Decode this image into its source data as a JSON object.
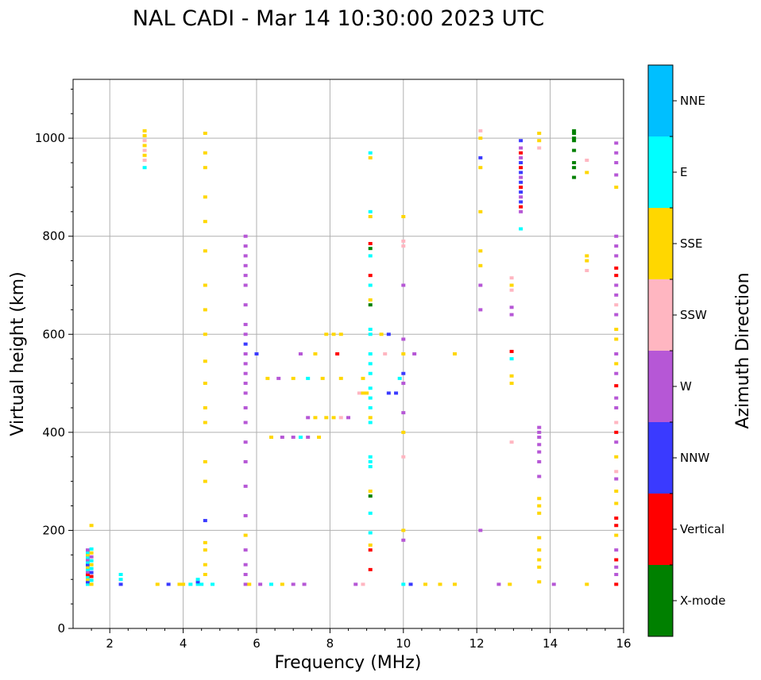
{
  "chart_data": {
    "type": "scatter",
    "title": "NAL CADI - Mar 14 10:30:00 2023 UTC",
    "xlabel": "Frequency (MHz)",
    "ylabel": "Virtual height (km)",
    "xlim": [
      1,
      16
    ],
    "ylim": [
      0,
      1120
    ],
    "xticks": [
      2,
      4,
      6,
      8,
      10,
      12,
      14,
      16
    ],
    "yticks": [
      0,
      200,
      400,
      600,
      800,
      1000
    ],
    "grid": true,
    "colorbar": {
      "title": "Azimuth Direction",
      "placement": "right",
      "categories": [
        {
          "name": "X-mode",
          "color": "#008000"
        },
        {
          "name": "Vertical",
          "color": "#ff0000"
        },
        {
          "name": "NNW",
          "color": "#3a3aff"
        },
        {
          "name": "W",
          "color": "#b657d6"
        },
        {
          "name": "SSW",
          "color": "#ffb6c1"
        },
        {
          "name": "SSE",
          "color": "#ffd700"
        },
        {
          "name": "E",
          "color": "#00ffff"
        },
        {
          "name": "NNE",
          "color": "#00bfff"
        }
      ]
    },
    "echo_columns": [
      {
        "f": 1.4,
        "h": [
          90,
          95,
          100,
          105,
          110,
          115,
          120,
          125,
          130,
          135,
          140,
          145,
          150,
          155,
          160
        ],
        "dir": [
          "E",
          "NNW",
          "SSE",
          "E",
          "Vertical",
          "W",
          "E",
          "SSE",
          "NNW",
          "E",
          "W",
          "E",
          "SSE",
          "E",
          "W"
        ]
      },
      {
        "f": 1.5,
        "h": [
          90,
          98,
          106,
          114,
          122,
          130,
          138,
          146,
          154,
          162,
          210
        ],
        "dir": [
          "SSE",
          "E",
          "Vertical",
          "NNW",
          "E",
          "SSE",
          "E",
          "W",
          "SSE",
          "E",
          "SSE"
        ]
      },
      {
        "f": 2.3,
        "h": [
          90,
          100,
          110
        ],
        "dir": [
          "NNW",
          "E",
          "E"
        ]
      },
      {
        "f": 2.95,
        "h": [
          940,
          955,
          965,
          975,
          985,
          995,
          1005,
          1015
        ],
        "dir": [
          "E",
          "SSW",
          "SSE",
          "SSW",
          "SSE",
          "SSW",
          "SSE",
          "SSE"
        ]
      },
      {
        "f": 4.4,
        "h": [
          90,
          95,
          100
        ],
        "dir": [
          "E",
          "NNW",
          "E"
        ]
      },
      {
        "f": 4.6,
        "h": [
          110,
          130,
          160,
          175,
          220,
          300,
          340,
          420,
          450,
          500,
          545,
          600,
          650,
          700,
          770,
          830,
          880,
          940,
          970,
          1010
        ],
        "dir": [
          "SSE",
          "SSE",
          "SSE",
          "SSE",
          "NNW",
          "SSE",
          "SSE",
          "SSE",
          "SSE",
          "SSE",
          "SSE",
          "SSE",
          "SSE",
          "SSE",
          "SSE",
          "SSE",
          "SSE",
          "SSE",
          "SSE",
          "SSE"
        ]
      },
      {
        "f": 5.7,
        "h": [
          90,
          110,
          130,
          160,
          190,
          230,
          290,
          340,
          380,
          420,
          450,
          480,
          500,
          520,
          540,
          560,
          580,
          600,
          620,
          660,
          700,
          720,
          740,
          760,
          780,
          800
        ],
        "dir": [
          "W",
          "W",
          "W",
          "W",
          "SSE",
          "W",
          "W",
          "W",
          "W",
          "W",
          "W",
          "W",
          "W",
          "W",
          "W",
          "W",
          "NNW",
          "W",
          "W",
          "W",
          "W",
          "W",
          "W",
          "W",
          "W",
          "W"
        ]
      },
      {
        "f": 9.1,
        "h": [
          120,
          160,
          170,
          195,
          235,
          270,
          280,
          330,
          340,
          350,
          420,
          430,
          450,
          470,
          490,
          520,
          540,
          560,
          600,
          610,
          660,
          670,
          700,
          720,
          760,
          775,
          785,
          840,
          850,
          960,
          970
        ],
        "dir": [
          "Vertical",
          "Vertical",
          "SSE",
          "E",
          "E",
          "X-mode",
          "SSE",
          "E",
          "E",
          "E",
          "E",
          "SSE",
          "E",
          "E",
          "E",
          "E",
          "E",
          "E",
          "E",
          "E",
          "X-mode",
          "SSE",
          "E",
          "Vertical",
          "E",
          "X-mode",
          "Vertical",
          "SSE",
          "E",
          "SSE",
          "E"
        ]
      },
      {
        "f": 10.0,
        "h": [
          90,
          180,
          200,
          350,
          400,
          440,
          500,
          520,
          560,
          590,
          700,
          780,
          790,
          840
        ],
        "dir": [
          "E",
          "W",
          "SSE",
          "SSW",
          "SSE",
          "W",
          "W",
          "NNW",
          "SSE",
          "W",
          "W",
          "SSW",
          "SSW",
          "SSE"
        ]
      },
      {
        "f": 12.1,
        "h": [
          200,
          650,
          700,
          740,
          770,
          850,
          940,
          960,
          1000,
          1015
        ],
        "dir": [
          "W",
          "W",
          "W",
          "SSE",
          "SSE",
          "SSE",
          "SSE",
          "NNW",
          "SSE",
          "SSW"
        ]
      },
      {
        "f": 12.95,
        "h": [
          380,
          500,
          515,
          550,
          565,
          640,
          655,
          690,
          700,
          715
        ],
        "dir": [
          "SSW",
          "SSE",
          "SSE",
          "E",
          "Vertical",
          "W",
          "W",
          "SSW",
          "SSE",
          "SSW"
        ]
      },
      {
        "f": 13.2,
        "h": [
          815,
          850,
          860,
          870,
          880,
          890,
          900,
          910,
          920,
          930,
          940,
          950,
          960,
          970,
          980,
          995
        ],
        "dir": [
          "E",
          "W",
          "Vertical",
          "NNW",
          "W",
          "NNW",
          "Vertical",
          "NNW",
          "W",
          "NNW",
          "Vertical",
          "NNW",
          "W",
          "Vertical",
          "W",
          "NNW"
        ]
      },
      {
        "f": 13.7,
        "h": [
          95,
          125,
          140,
          160,
          185,
          235,
          250,
          265,
          310,
          340,
          360,
          375,
          390,
          400,
          410,
          980,
          995,
          1010
        ],
        "dir": [
          "SSE",
          "SSE",
          "SSE",
          "SSE",
          "SSE",
          "SSE",
          "SSE",
          "SSE",
          "W",
          "W",
          "W",
          "W",
          "W",
          "W",
          "W",
          "SSW",
          "SSE",
          "SSE"
        ]
      },
      {
        "f": 14.65,
        "h": [
          920,
          940,
          950,
          975,
          995,
          1000,
          1010,
          1015
        ],
        "dir": [
          "X-mode",
          "X-mode",
          "X-mode",
          "X-mode",
          "X-mode",
          "X-mode",
          "X-mode",
          "X-mode"
        ]
      },
      {
        "f": 15.0,
        "h": [
          90,
          730,
          750,
          760,
          930,
          955
        ],
        "dir": [
          "SSE",
          "SSW",
          "SSE",
          "SSE",
          "SSE",
          "SSW"
        ]
      },
      {
        "f": 15.8,
        "h": [
          90,
          110,
          125,
          140,
          160,
          190,
          210,
          225,
          255,
          280,
          305,
          320,
          350,
          380,
          400,
          420,
          450,
          470,
          495,
          520,
          540,
          560,
          590,
          610,
          640,
          660,
          680,
          700,
          720,
          735,
          760,
          780,
          800,
          900,
          925,
          950,
          970,
          990
        ],
        "dir": [
          "Vertical",
          "W",
          "W",
          "Vertical",
          "W",
          "SSE",
          "Vertical",
          "Vertical",
          "SSE",
          "SSE",
          "W",
          "SSW",
          "SSE",
          "W",
          "Vertical",
          "SSW",
          "W",
          "W",
          "Vertical",
          "W",
          "SSE",
          "W",
          "SSE",
          "SSE",
          "W",
          "SSW",
          "W",
          "W",
          "Vertical",
          "Vertical",
          "W",
          "W",
          "W",
          "SSE",
          "W",
          "W",
          "W",
          "W"
        ]
      }
    ],
    "echo_rows": [
      {
        "h": 90,
        "f": [
          3.3,
          3.6,
          3.9,
          4.0,
          4.2,
          4.5,
          4.8,
          5.8,
          6.1,
          6.4,
          6.7,
          7.0,
          7.3,
          8.7,
          8.9,
          10.2,
          10.6,
          11.0,
          11.4,
          12.6,
          12.9,
          14.1
        ],
        "dir": [
          "SSE",
          "NNW",
          "SSE",
          "SSE",
          "E",
          "E",
          "E",
          "SSE",
          "W",
          "E",
          "SSE",
          "W",
          "W",
          "W",
          "SSW",
          "NNW",
          "SSE",
          "SSE",
          "SSE",
          "W",
          "SSE",
          "W"
        ]
      },
      {
        "h": 480,
        "f": [
          8.8,
          8.9,
          9.0,
          9.6,
          9.8
        ],
        "dir": [
          "SSW",
          "SSE",
          "SSE",
          "NNW",
          "NNW"
        ]
      },
      {
        "h": 510,
        "f": [
          6.3,
          6.6,
          7.0,
          7.4,
          7.8,
          8.3,
          8.9,
          9.9
        ],
        "dir": [
          "SSE",
          "W",
          "SSE",
          "E",
          "SSE",
          "SSE",
          "SSE",
          "E"
        ]
      },
      {
        "h": 600,
        "f": [
          7.9,
          8.1,
          8.3,
          9.4,
          9.6
        ],
        "dir": [
          "SSE",
          "SSE",
          "SSE",
          "SSE",
          "NNW"
        ]
      },
      {
        "h": 430,
        "f": [
          7.4,
          7.6,
          7.9,
          8.1,
          8.3,
          8.5
        ],
        "dir": [
          "W",
          "SSE",
          "SSE",
          "SSE",
          "SSW",
          "W"
        ]
      },
      {
        "h": 390,
        "f": [
          6.4,
          6.7,
          7.0,
          7.2,
          7.4,
          7.7
        ],
        "dir": [
          "SSE",
          "W",
          "W",
          "E",
          "W",
          "SSE"
        ]
      },
      {
        "h": 560,
        "f": [
          6.0,
          7.2,
          7.6,
          8.2,
          9.5,
          10.3,
          11.4
        ],
        "dir": [
          "NNW",
          "W",
          "SSE",
          "Vertical",
          "SSW",
          "W",
          "SSE"
        ]
      }
    ]
  }
}
